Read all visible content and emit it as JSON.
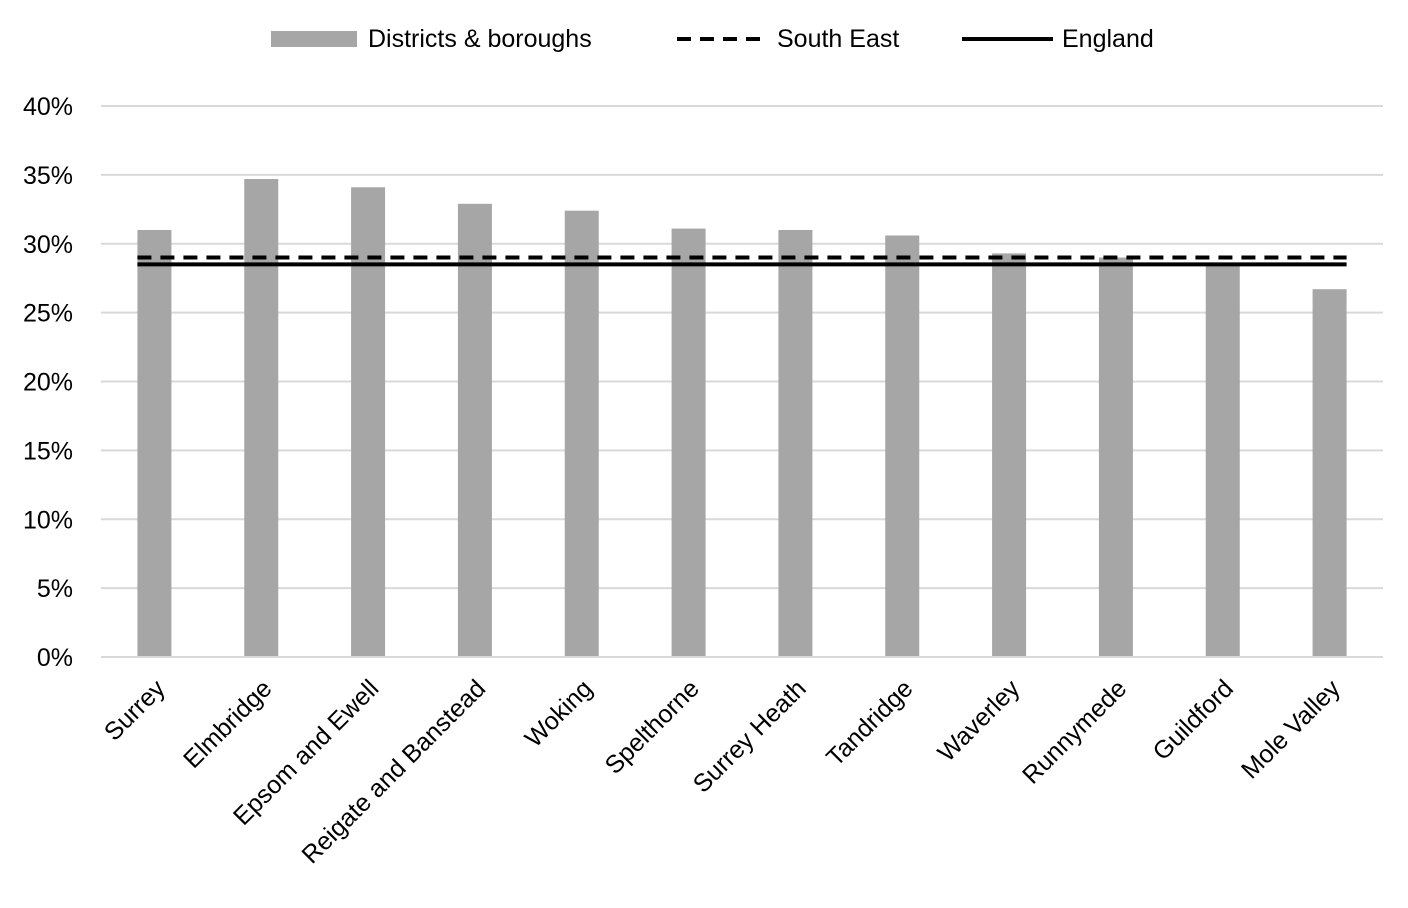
{
  "chart_data": {
    "type": "bar",
    "categories": [
      "Surrey",
      "Elmbridge",
      "Epsom and Ewell",
      "Reigate and Banstead",
      "Woking",
      "Spelthorne",
      "Surrey Heath",
      "Tandridge",
      "Waverley",
      "Runnymede",
      "Guildford",
      "Mole Valley"
    ],
    "series": [
      {
        "name": "Districts & boroughs",
        "type": "bar",
        "color": "#a6a6a6",
        "values": [
          31.0,
          34.7,
          34.1,
          32.9,
          32.4,
          31.1,
          31.0,
          30.6,
          29.3,
          29.0,
          28.6,
          26.7
        ]
      },
      {
        "name": "South East",
        "type": "line",
        "style": "dashed",
        "color": "#000000",
        "value": 29.0
      },
      {
        "name": "England",
        "type": "line",
        "style": "solid",
        "color": "#000000",
        "value": 28.5
      }
    ],
    "ylim": [
      0,
      40
    ],
    "ytick_values": [
      0,
      5,
      10,
      15,
      20,
      25,
      30,
      35,
      40
    ],
    "ytick_labels": [
      "0%",
      "5%",
      "10%",
      "15%",
      "20%",
      "25%",
      "30%",
      "35%",
      "40%"
    ],
    "title": "",
    "xlabel": "",
    "ylabel": "",
    "grid": true,
    "legend_position": "top-center",
    "colors": {
      "bar": "#a6a6a6",
      "grid": "#d9d9d9",
      "line": "#000000"
    }
  }
}
